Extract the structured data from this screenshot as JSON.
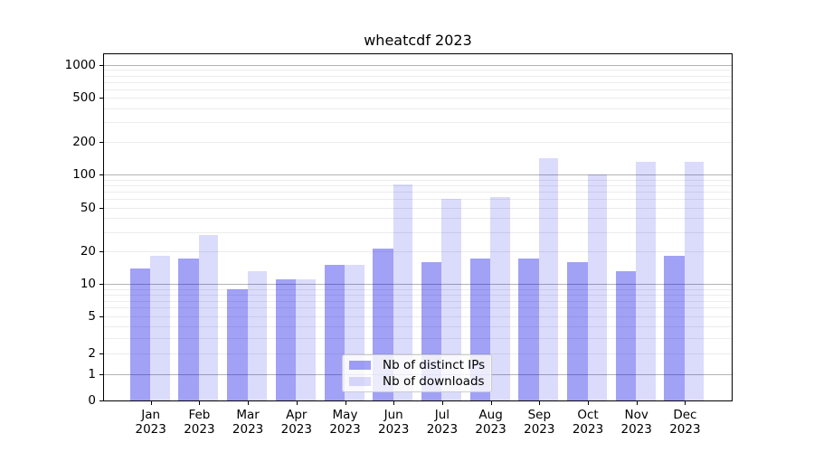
{
  "title": "wheatcdf 2023",
  "chart_data": {
    "type": "bar",
    "title": "wheatcdf 2023",
    "categories": [
      "Jan",
      "Feb",
      "Mar",
      "Apr",
      "May",
      "Jun",
      "Jul",
      "Aug",
      "Sep",
      "Oct",
      "Nov",
      "Dec"
    ],
    "year_label": "2023",
    "series": [
      {
        "name": "Nb of distinct IPs",
        "color": "rgba(0,0,230,0.37)",
        "values": [
          14,
          17,
          9,
          11,
          15,
          21,
          16,
          17,
          17,
          16,
          13,
          18
        ]
      },
      {
        "name": "Nb of downloads",
        "color": "rgba(0,0,230,0.14)",
        "values": [
          18,
          28,
          13,
          11,
          15,
          82,
          60,
          62,
          140,
          100,
          130,
          130
        ]
      }
    ],
    "y_ticks": [
      0,
      1,
      2,
      5,
      10,
      20,
      50,
      100,
      200,
      500,
      1000
    ],
    "y_scale": "symlog",
    "ylim": [
      0,
      1250
    ],
    "xlabel": "",
    "ylabel": "",
    "grid": true,
    "legend_position": "lower center"
  },
  "colors": {
    "background": "#ffffff",
    "spine": "#000000",
    "grid_major": "#b3b3b3",
    "grid_minor": "#ececec",
    "text": "#000000"
  }
}
